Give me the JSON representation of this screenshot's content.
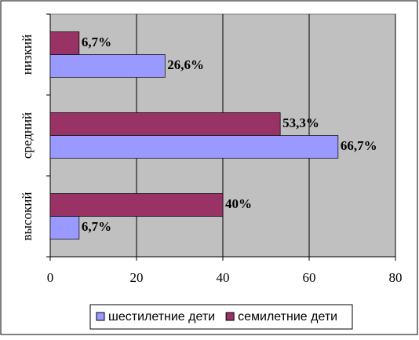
{
  "chart_data": {
    "type": "bar",
    "orientation": "horizontal",
    "categories": [
      "низкий",
      "средний",
      "высокий"
    ],
    "series": [
      {
        "name": "семилетние дети",
        "color": "#993366",
        "values": [
          6.7,
          53.3,
          40
        ],
        "value_labels": [
          "6,7%",
          "53,3%",
          "40%"
        ]
      },
      {
        "name": "шестилетние дети",
        "color": "#9999ff",
        "values": [
          26.6,
          66.7,
          6.7
        ],
        "value_labels": [
          "26,6%",
          "66,7%",
          "6,7%"
        ]
      }
    ],
    "xlim": [
      0,
      80
    ],
    "xticks": [
      0,
      20,
      40,
      60,
      80
    ],
    "grid": true,
    "legend": "bottom"
  }
}
